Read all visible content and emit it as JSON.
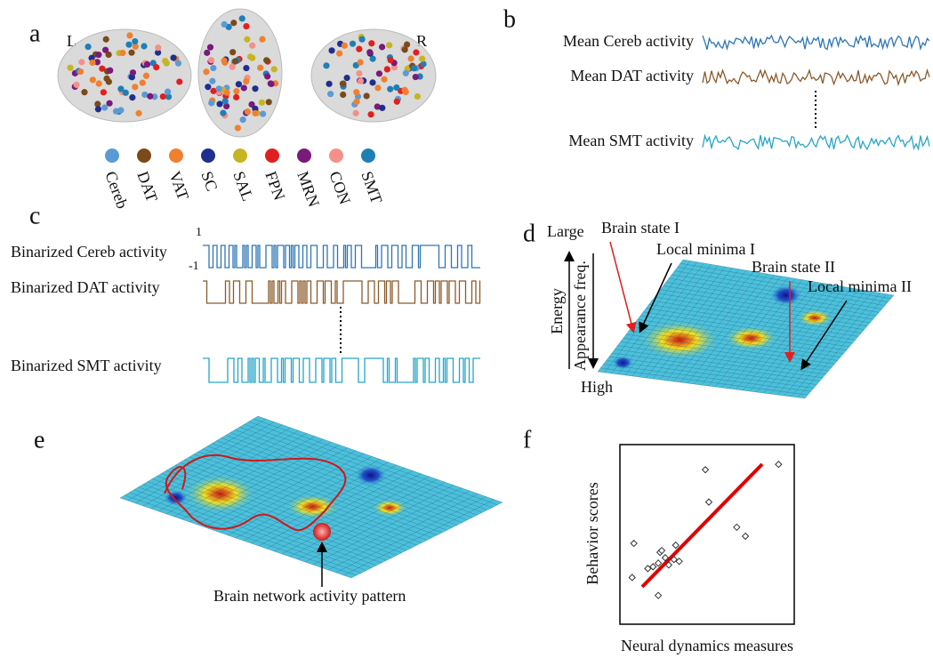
{
  "panels": {
    "a": {
      "label": "a",
      "left": "L",
      "right": "R",
      "networks": [
        {
          "name": "Cereb",
          "color": "#5b9bd5"
        },
        {
          "name": "DAT",
          "color": "#7a4a1a"
        },
        {
          "name": "VAT",
          "color": "#f08030"
        },
        {
          "name": "SC",
          "color": "#1f2f8f"
        },
        {
          "name": "SAL",
          "color": "#c8b420"
        },
        {
          "name": "FPN",
          "color": "#e02020"
        },
        {
          "name": "MRN",
          "color": "#7a1a7a"
        },
        {
          "name": "CON",
          "color": "#f4908a"
        },
        {
          "name": "SMT",
          "color": "#1f7fb5"
        }
      ]
    },
    "b": {
      "label": "b",
      "signals": [
        {
          "name": "Mean Cereb activity",
          "color": "#2e75b6"
        },
        {
          "name": "Mean DAT activity",
          "color": "#8b5a2b"
        },
        {
          "name": "Mean SMT activity",
          "color": "#27a5c9"
        }
      ]
    },
    "c": {
      "label": "c",
      "high": 1,
      "low": -1,
      "signals": [
        {
          "name": "Binarized Cereb activity",
          "color": "#2e75b6"
        },
        {
          "name": "Binarized DAT activity",
          "color": "#8b5a2b"
        },
        {
          "name": "Binarized SMT activity",
          "color": "#27a5c9"
        }
      ]
    },
    "d": {
      "label": "d",
      "top": "Large",
      "bottom": "High",
      "axis1": "Energy",
      "axis2": "Appearance freq.",
      "annotations": [
        "Brain state I",
        "Local minima I",
        "Brain state II",
        "Local minima II"
      ]
    },
    "e": {
      "label": "e",
      "annotation": "Brain network activity pattern"
    },
    "f": {
      "label": "f",
      "type": "scatter",
      "x_label": "Neural dynamics measures",
      "y_label": "Behavior scores",
      "xlim": [
        0,
        10
      ],
      "ylim": [
        0,
        10
      ],
      "x": [
        0.8,
        0.7,
        1.6,
        1.9,
        2.2,
        2.3,
        2.4,
        2.2,
        2.6,
        2.8,
        3.1,
        3.2,
        3.4,
        5.1,
        4.9,
        6.7,
        7.2,
        9.1
      ],
      "y": [
        4.5,
        2.6,
        3.1,
        3.2,
        3.4,
        4.0,
        4.1,
        1.6,
        3.7,
        3.3,
        3.6,
        4.4,
        3.5,
        6.8,
        8.6,
        5.4,
        4.9,
        8.9
      ]
    }
  }
}
